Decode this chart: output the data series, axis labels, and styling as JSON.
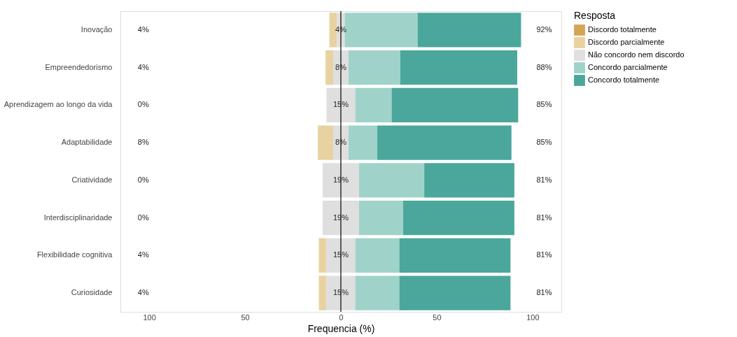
{
  "chart_data": {
    "type": "bar",
    "orientation": "horizontal",
    "xlabel": "Frequencia (%)",
    "legend_title": "Resposta",
    "legend": "right",
    "grid": false,
    "categories": [
      "Inovação",
      "Empreendedorismo",
      "Aprendizagem ao longo da vida",
      "Adaptabilidade",
      "Criatividade",
      "Interdisciplinaridade",
      "Flexibilidade cognitiva",
      "Curiosidade"
    ],
    "series": [
      {
        "name": "Discordo totalmente",
        "color": "#d4a555",
        "values": [
          0,
          0,
          0,
          0,
          0,
          0,
          0,
          0
        ]
      },
      {
        "name": "Discordo parcialmente",
        "color": "#e8d2a1",
        "values": [
          4,
          4,
          0,
          8,
          0,
          0,
          4,
          4
        ],
        "base": [
          -6,
          -8,
          null,
          -12,
          null,
          null,
          -11.5,
          -11.5
        ],
        "value_labels": [
          "4%",
          "4%",
          "0%",
          "8%",
          "0%",
          "0%",
          "4%",
          "4%"
        ]
      },
      {
        "name": "Não concordo nem discordo",
        "color": "#dfdfdf",
        "values": [
          4,
          8,
          15,
          8,
          19,
          19,
          15,
          15
        ],
        "base": [
          -2,
          -4,
          -7.5,
          -4,
          -9.5,
          -9.5,
          -7.5,
          -7.5
        ],
        "value_labels": [
          "4%",
          "8%",
          "15%",
          "8%",
          "19%",
          "19%",
          "15%",
          "15%"
        ]
      },
      {
        "name": "Concordo parcialmente",
        "color": "#9fd3ca",
        "values": [
          38,
          27,
          19,
          15,
          34,
          23,
          23,
          23
        ],
        "base": [
          2,
          4,
          7.5,
          4,
          9.5,
          9.5,
          7.5,
          7.5
        ]
      },
      {
        "name": "Concordo totalmente",
        "color": "#4ba79b",
        "values": [
          54,
          61,
          66,
          70,
          47,
          58,
          58,
          58
        ],
        "base": [
          40,
          31,
          26.5,
          19,
          43.5,
          32.5,
          30.5,
          30.5
        ]
      }
    ],
    "annotations": [
      "92%",
      "88%",
      "85%",
      "85%",
      "81%",
      "81%",
      "81%",
      "81%"
    ],
    "xlim": [
      -115,
      115
    ],
    "xticks": [
      {
        "value": -100,
        "label": "100"
      },
      {
        "value": -50,
        "label": "50"
      },
      0,
      50,
      100
    ],
    "ref_lines": [
      {
        "axis": "x",
        "value": 0,
        "color": "#000000",
        "line_style": "solid"
      }
    ]
  }
}
